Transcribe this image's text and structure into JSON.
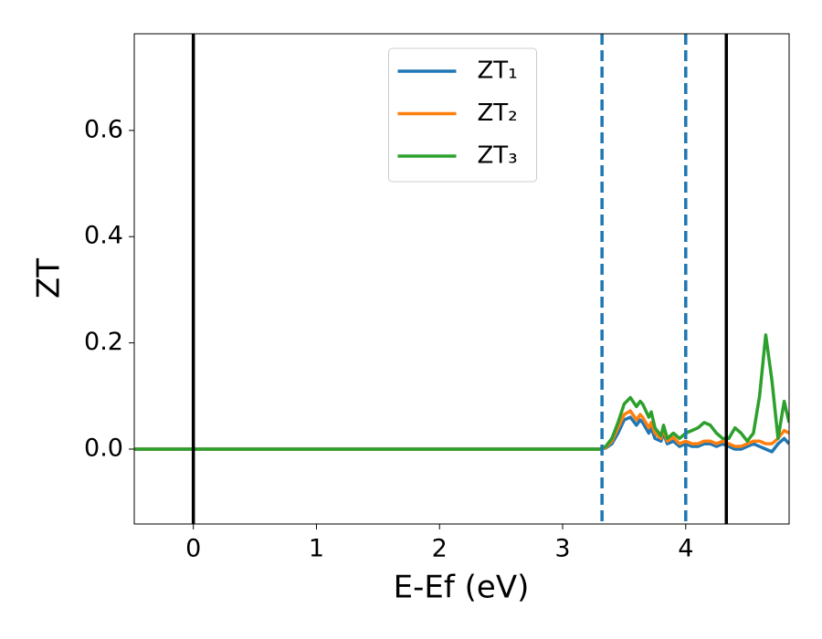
{
  "chart_data": {
    "type": "line",
    "x_label": "E-Ef (eV)",
    "y_label": "ZT",
    "x": [
      -0.48,
      3.3,
      3.35,
      3.4,
      3.45,
      3.5,
      3.55,
      3.6,
      3.63,
      3.65,
      3.7,
      3.72,
      3.75,
      3.8,
      3.82,
      3.85,
      3.9,
      3.95,
      4.0,
      4.05,
      4.1,
      4.15,
      4.2,
      4.25,
      4.3,
      4.35,
      4.4,
      4.45,
      4.5,
      4.55,
      4.6,
      4.65,
      4.7,
      4.75,
      4.8,
      4.84
    ],
    "series": [
      {
        "name": "ZT₁",
        "color": "#1f77b4",
        "values": [
          0,
          0,
          0.002,
          0.01,
          0.03,
          0.055,
          0.06,
          0.045,
          0.055,
          0.05,
          0.03,
          0.04,
          0.02,
          0.015,
          0.03,
          0.01,
          0.015,
          0.005,
          0.01,
          0.005,
          0.005,
          0.01,
          0.01,
          0.005,
          0.01,
          0.005,
          0,
          0,
          0.005,
          0.01,
          0.005,
          0,
          -0.005,
          0.01,
          0.02,
          0.01
        ]
      },
      {
        "name": "ZT₂",
        "color": "#ff7f0e",
        "values": [
          0,
          0,
          0.003,
          0.015,
          0.04,
          0.065,
          0.072,
          0.055,
          0.065,
          0.06,
          0.04,
          0.05,
          0.03,
          0.02,
          0.038,
          0.015,
          0.022,
          0.01,
          0.015,
          0.01,
          0.01,
          0.015,
          0.015,
          0.01,
          0.015,
          0.01,
          0.005,
          0.005,
          0.01,
          0.015,
          0.015,
          0.01,
          0.01,
          0.02,
          0.035,
          0.03
        ]
      },
      {
        "name": "ZT₃",
        "color": "#2ca02c",
        "values": [
          0,
          0,
          0.005,
          0.02,
          0.05,
          0.085,
          0.097,
          0.08,
          0.09,
          0.085,
          0.06,
          0.07,
          0.04,
          0.025,
          0.045,
          0.02,
          0.03,
          0.02,
          0.03,
          0.035,
          0.04,
          0.05,
          0.045,
          0.03,
          0.02,
          0.02,
          0.04,
          0.03,
          0.015,
          0.03,
          0.1,
          0.215,
          0.13,
          0.02,
          0.09,
          0.05
        ]
      }
    ],
    "vlines": [
      {
        "x": 0,
        "color": "#000000",
        "style": "solid"
      },
      {
        "x": 4.33,
        "color": "#000000",
        "style": "solid"
      },
      {
        "x": 3.32,
        "color": "#1f77b4",
        "style": "dashed"
      },
      {
        "x": 4.0,
        "color": "#1f77b4",
        "style": "dashed"
      }
    ],
    "xlim": [
      -0.48,
      4.84
    ],
    "ylim": [
      -0.141,
      0.782
    ],
    "xticks": [
      0,
      1,
      2,
      3,
      4
    ],
    "yticks": [
      {
        "value": 0,
        "label": "0.0"
      },
      0.2,
      0.4,
      0.6
    ],
    "legend": "upper-center"
  }
}
